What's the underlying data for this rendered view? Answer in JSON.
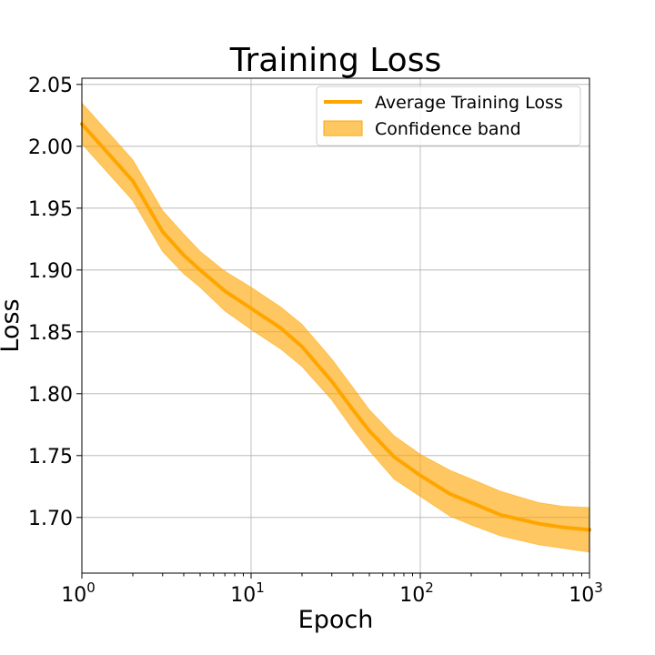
{
  "chart_data": {
    "type": "line",
    "title": "Training Loss",
    "xlabel": "Epoch",
    "ylabel": "Loss",
    "xscale": "log",
    "xlim": [
      1,
      1000
    ],
    "ylim": [
      1.655,
      2.055
    ],
    "grid": true,
    "legend_position": "top-right",
    "x_ticks": [
      {
        "value": 1,
        "base": "10",
        "exp": "0"
      },
      {
        "value": 10,
        "base": "10",
        "exp": "1"
      },
      {
        "value": 100,
        "base": "10",
        "exp": "2"
      },
      {
        "value": 1000,
        "base": "10",
        "exp": "3"
      }
    ],
    "y_ticks": [
      1.7,
      1.75,
      1.8,
      1.85,
      1.9,
      1.95,
      2.0,
      2.05
    ],
    "y_tick_labels": [
      "1.70",
      "1.75",
      "1.80",
      "1.85",
      "1.90",
      "1.95",
      "2.00",
      "2.05"
    ],
    "series": [
      {
        "name": "Average Training Loss",
        "color": "#ffa500",
        "x": [
          1,
          2,
          3,
          4,
          5,
          7,
          10,
          15,
          20,
          30,
          40,
          50,
          70,
          100,
          150,
          200,
          300,
          500,
          700,
          1000
        ],
        "y": [
          2.018,
          1.972,
          1.931,
          1.912,
          1.9,
          1.883,
          1.869,
          1.853,
          1.838,
          1.81,
          1.787,
          1.77,
          1.749,
          1.734,
          1.719,
          1.712,
          1.702,
          1.695,
          1.692,
          1.69
        ]
      }
    ],
    "band": {
      "name": "Confidence band",
      "color": "#ffa500",
      "opacity": 0.62,
      "x": [
        1,
        2,
        3,
        4,
        5,
        7,
        10,
        15,
        20,
        30,
        40,
        50,
        70,
        100,
        150,
        200,
        300,
        500,
        700,
        1000
      ],
      "lower": [
        2.002,
        1.956,
        1.915,
        1.897,
        1.886,
        1.867,
        1.852,
        1.836,
        1.822,
        1.795,
        1.771,
        1.754,
        1.731,
        1.717,
        1.701,
        1.694,
        1.685,
        1.678,
        1.675,
        1.672
      ],
      "upper": [
        2.035,
        1.989,
        1.948,
        1.929,
        1.915,
        1.899,
        1.886,
        1.87,
        1.856,
        1.828,
        1.805,
        1.787,
        1.766,
        1.751,
        1.738,
        1.731,
        1.721,
        1.712,
        1.709,
        1.708
      ]
    }
  }
}
